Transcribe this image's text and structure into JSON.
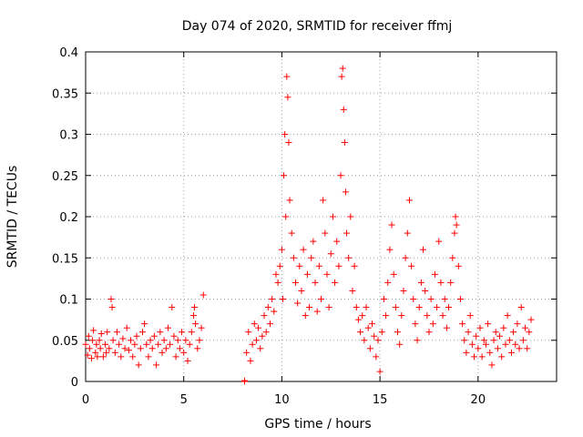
{
  "chart_data": {
    "type": "scatter",
    "title": "Day 074 of 2020, SRMTID for receiver ffmj",
    "xlabel": "GPS time / hours",
    "ylabel": "SRMTID / TECUs",
    "xlim": [
      0,
      24
    ],
    "ylim": [
      0,
      0.4
    ],
    "xticks": [
      0,
      5,
      10,
      15,
      20
    ],
    "yticks": [
      0,
      0.05,
      0.1,
      0.15,
      0.2,
      0.25,
      0.3,
      0.35,
      0.4
    ],
    "xtick_labels": [
      "0",
      "5",
      "10",
      "15",
      "20"
    ],
    "ytick_labels": [
      "0",
      "0.05",
      "0.1",
      "0.15",
      "0.2",
      "0.25",
      "0.3",
      "0.35",
      "0.4"
    ],
    "grid": true,
    "marker": "+",
    "color": "#ff0000",
    "series": [
      {
        "name": "SRMTID",
        "points": [
          [
            0.0,
            0.045
          ],
          [
            0.1,
            0.032
          ],
          [
            0.15,
            0.055
          ],
          [
            0.2,
            0.04
          ],
          [
            0.3,
            0.028
          ],
          [
            0.35,
            0.05
          ],
          [
            0.4,
            0.062
          ],
          [
            0.5,
            0.035
          ],
          [
            0.55,
            0.045
          ],
          [
            0.6,
            0.03
          ],
          [
            0.7,
            0.05
          ],
          [
            0.75,
            0.04
          ],
          [
            0.8,
            0.058
          ],
          [
            0.9,
            0.03
          ],
          [
            1.0,
            0.045
          ],
          [
            1.05,
            0.035
          ],
          [
            1.1,
            0.06
          ],
          [
            1.2,
            0.04
          ],
          [
            1.3,
            0.1
          ],
          [
            1.35,
            0.09
          ],
          [
            1.4,
            0.05
          ],
          [
            1.5,
            0.035
          ],
          [
            1.6,
            0.06
          ],
          [
            1.7,
            0.045
          ],
          [
            1.8,
            0.03
          ],
          [
            1.9,
            0.052
          ],
          [
            2.0,
            0.04
          ],
          [
            2.1,
            0.065
          ],
          [
            2.2,
            0.038
          ],
          [
            2.3,
            0.05
          ],
          [
            2.4,
            0.03
          ],
          [
            2.5,
            0.045
          ],
          [
            2.6,
            0.055
          ],
          [
            2.7,
            0.02
          ],
          [
            2.8,
            0.04
          ],
          [
            2.9,
            0.06
          ],
          [
            3.0,
            0.07
          ],
          [
            3.1,
            0.045
          ],
          [
            3.2,
            0.03
          ],
          [
            3.3,
            0.05
          ],
          [
            3.4,
            0.04
          ],
          [
            3.5,
            0.055
          ],
          [
            3.6,
            0.02
          ],
          [
            3.7,
            0.045
          ],
          [
            3.8,
            0.06
          ],
          [
            3.9,
            0.035
          ],
          [
            4.0,
            0.05
          ],
          [
            4.1,
            0.04
          ],
          [
            4.2,
            0.065
          ],
          [
            4.3,
            0.045
          ],
          [
            4.4,
            0.09
          ],
          [
            4.5,
            0.055
          ],
          [
            4.6,
            0.03
          ],
          [
            4.7,
            0.05
          ],
          [
            4.8,
            0.04
          ],
          [
            4.9,
            0.06
          ],
          [
            5.0,
            0.035
          ],
          [
            5.1,
            0.05
          ],
          [
            5.2,
            0.025
          ],
          [
            5.3,
            0.045
          ],
          [
            5.4,
            0.06
          ],
          [
            5.5,
            0.08
          ],
          [
            5.55,
            0.09
          ],
          [
            5.6,
            0.07
          ],
          [
            5.7,
            0.04
          ],
          [
            5.8,
            0.05
          ],
          [
            5.9,
            0.065
          ],
          [
            6.0,
            0.105
          ],
          [
            8.1,
            0.0
          ],
          [
            8.1,
            0.001
          ],
          [
            8.2,
            0.035
          ],
          [
            8.3,
            0.06
          ],
          [
            8.4,
            0.025
          ],
          [
            8.5,
            0.045
          ],
          [
            8.6,
            0.07
          ],
          [
            8.7,
            0.05
          ],
          [
            8.8,
            0.065
          ],
          [
            8.9,
            0.04
          ],
          [
            9.0,
            0.055
          ],
          [
            9.1,
            0.08
          ],
          [
            9.2,
            0.06
          ],
          [
            9.3,
            0.09
          ],
          [
            9.4,
            0.07
          ],
          [
            9.5,
            0.1
          ],
          [
            9.6,
            0.085
          ],
          [
            9.7,
            0.13
          ],
          [
            9.8,
            0.12
          ],
          [
            9.9,
            0.14
          ],
          [
            10.0,
            0.16
          ],
          [
            10.05,
            0.1
          ],
          [
            10.1,
            0.25
          ],
          [
            10.15,
            0.3
          ],
          [
            10.2,
            0.2
          ],
          [
            10.25,
            0.37
          ],
          [
            10.3,
            0.345
          ],
          [
            10.35,
            0.29
          ],
          [
            10.4,
            0.22
          ],
          [
            10.5,
            0.18
          ],
          [
            10.6,
            0.15
          ],
          [
            10.7,
            0.12
          ],
          [
            10.8,
            0.095
          ],
          [
            10.9,
            0.14
          ],
          [
            11.0,
            0.11
          ],
          [
            11.1,
            0.16
          ],
          [
            11.2,
            0.08
          ],
          [
            11.3,
            0.13
          ],
          [
            11.4,
            0.09
          ],
          [
            11.5,
            0.15
          ],
          [
            11.6,
            0.17
          ],
          [
            11.7,
            0.12
          ],
          [
            11.8,
            0.085
          ],
          [
            11.9,
            0.14
          ],
          [
            12.0,
            0.1
          ],
          [
            12.1,
            0.22
          ],
          [
            12.2,
            0.18
          ],
          [
            12.3,
            0.13
          ],
          [
            12.4,
            0.09
          ],
          [
            12.5,
            0.155
          ],
          [
            12.6,
            0.2
          ],
          [
            12.7,
            0.12
          ],
          [
            12.8,
            0.17
          ],
          [
            12.9,
            0.14
          ],
          [
            13.0,
            0.25
          ],
          [
            13.05,
            0.37
          ],
          [
            13.1,
            0.38
          ],
          [
            13.15,
            0.33
          ],
          [
            13.2,
            0.29
          ],
          [
            13.25,
            0.23
          ],
          [
            13.3,
            0.18
          ],
          [
            13.4,
            0.15
          ],
          [
            13.5,
            0.2
          ],
          [
            13.6,
            0.11
          ],
          [
            13.7,
            0.14
          ],
          [
            13.8,
            0.09
          ],
          [
            13.9,
            0.075
          ],
          [
            14.0,
            0.06
          ],
          [
            14.1,
            0.08
          ],
          [
            14.2,
            0.05
          ],
          [
            14.3,
            0.09
          ],
          [
            14.4,
            0.065
          ],
          [
            14.5,
            0.04
          ],
          [
            14.6,
            0.07
          ],
          [
            14.7,
            0.055
          ],
          [
            14.8,
            0.03
          ],
          [
            14.9,
            0.05
          ],
          [
            15.0,
            0.012
          ],
          [
            15.1,
            0.06
          ],
          [
            15.2,
            0.1
          ],
          [
            15.3,
            0.08
          ],
          [
            15.4,
            0.12
          ],
          [
            15.5,
            0.16
          ],
          [
            15.6,
            0.19
          ],
          [
            15.7,
            0.13
          ],
          [
            15.8,
            0.09
          ],
          [
            15.9,
            0.06
          ],
          [
            16.0,
            0.045
          ],
          [
            16.1,
            0.08
          ],
          [
            16.2,
            0.11
          ],
          [
            16.3,
            0.15
          ],
          [
            16.4,
            0.18
          ],
          [
            16.5,
            0.22
          ],
          [
            16.6,
            0.14
          ],
          [
            16.7,
            0.1
          ],
          [
            16.8,
            0.07
          ],
          [
            16.9,
            0.05
          ],
          [
            17.0,
            0.09
          ],
          [
            17.1,
            0.12
          ],
          [
            17.2,
            0.16
          ],
          [
            17.3,
            0.11
          ],
          [
            17.4,
            0.08
          ],
          [
            17.5,
            0.06
          ],
          [
            17.6,
            0.1
          ],
          [
            17.7,
            0.07
          ],
          [
            17.8,
            0.13
          ],
          [
            17.9,
            0.09
          ],
          [
            18.0,
            0.17
          ],
          [
            18.1,
            0.12
          ],
          [
            18.2,
            0.08
          ],
          [
            18.3,
            0.1
          ],
          [
            18.4,
            0.065
          ],
          [
            18.5,
            0.09
          ],
          [
            18.6,
            0.12
          ],
          [
            18.7,
            0.15
          ],
          [
            18.8,
            0.18
          ],
          [
            18.85,
            0.2
          ],
          [
            18.9,
            0.19
          ],
          [
            19.0,
            0.14
          ],
          [
            19.1,
            0.1
          ],
          [
            19.2,
            0.07
          ],
          [
            19.3,
            0.05
          ],
          [
            19.4,
            0.035
          ],
          [
            19.5,
            0.06
          ],
          [
            19.6,
            0.08
          ],
          [
            19.7,
            0.045
          ],
          [
            19.8,
            0.03
          ],
          [
            19.9,
            0.055
          ],
          [
            20.0,
            0.04
          ],
          [
            20.1,
            0.065
          ],
          [
            20.2,
            0.03
          ],
          [
            20.3,
            0.05
          ],
          [
            20.4,
            0.045
          ],
          [
            20.5,
            0.07
          ],
          [
            20.6,
            0.035
          ],
          [
            20.7,
            0.02
          ],
          [
            20.8,
            0.05
          ],
          [
            20.9,
            0.06
          ],
          [
            21.0,
            0.04
          ],
          [
            21.1,
            0.055
          ],
          [
            21.2,
            0.03
          ],
          [
            21.3,
            0.065
          ],
          [
            21.4,
            0.045
          ],
          [
            21.5,
            0.08
          ],
          [
            21.6,
            0.05
          ],
          [
            21.7,
            0.035
          ],
          [
            21.8,
            0.06
          ],
          [
            21.9,
            0.045
          ],
          [
            22.0,
            0.07
          ],
          [
            22.1,
            0.04
          ],
          [
            22.2,
            0.09
          ],
          [
            22.3,
            0.05
          ],
          [
            22.4,
            0.065
          ],
          [
            22.5,
            0.04
          ],
          [
            22.6,
            0.06
          ],
          [
            22.7,
            0.075
          ]
        ]
      }
    ]
  }
}
